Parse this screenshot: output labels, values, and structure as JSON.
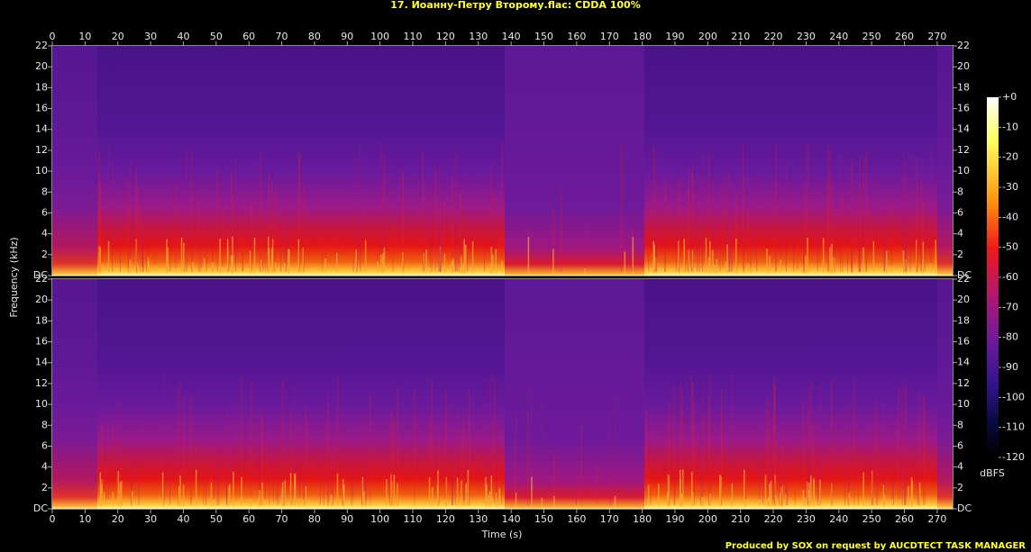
{
  "chart_data": {
    "type": "spectrogram",
    "title": "17. Иоанну-Петру Второму.flac: CDDA 100%",
    "x_label": "Time (s)",
    "y_label": "Frequency (kHz)",
    "xlim": [
      0,
      274.7
    ],
    "xticks": [
      0,
      10,
      20,
      30,
      40,
      50,
      60,
      70,
      80,
      90,
      100,
      110,
      120,
      130,
      140,
      150,
      160,
      170,
      180,
      190,
      200,
      210,
      220,
      230,
      240,
      250,
      260,
      270
    ],
    "ylim": [
      0,
      22
    ],
    "yticks": [
      {
        "value": 0,
        "label": "DC"
      },
      2,
      4,
      6,
      8,
      10,
      12,
      14,
      16,
      18,
      20,
      22
    ],
    "colorbar": {
      "label": "dBFS",
      "lim": [
        -120,
        0
      ],
      "ticks": [
        {
          "value": 0,
          "label": "+0"
        },
        -10,
        -20,
        -30,
        -40,
        -50,
        -60,
        -70,
        -80,
        -90,
        -100,
        -110,
        -120
      ]
    },
    "footer": "Produced by SOX on request by AUCDTECT TASK MANAGER"
  }
}
